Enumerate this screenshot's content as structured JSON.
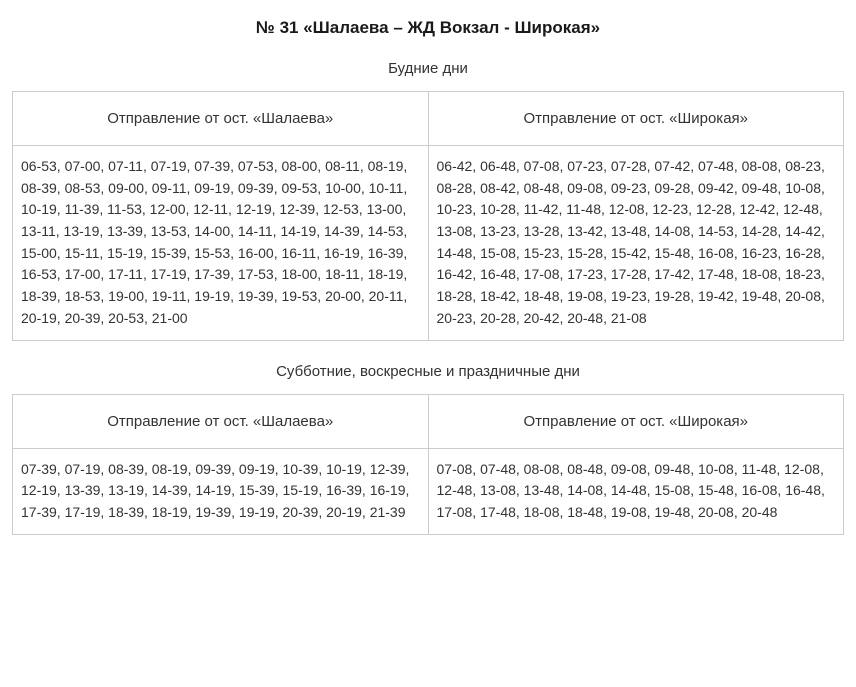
{
  "title": "№ 31 «Шалаева – ЖД Вокзал - Широкая»",
  "sections": {
    "weekday": {
      "label": "Будние дни",
      "columns": {
        "left": "Отправление от ост. «Шалаева»",
        "right": "Отправление от ост. «Широкая»"
      },
      "left_times": "06-53, 07-00, 07-11, 07-19, 07-39, 07-53, 08-00, 08-11, 08-19, 08-39, 08-53, 09-00, 09-11, 09-19, 09-39, 09-53, 10-00, 10-11, 10-19, 11-39, 11-53, 12-00, 12-11, 12-19, 12-39, 12-53, 13-00, 13-11, 13-19, 13-39, 13-53, 14-00, 14-11, 14-19, 14-39, 14-53, 15-00, 15-11, 15-19, 15-39, 15-53, 16-00, 16-11, 16-19, 16-39, 16-53, 17-00, 17-11, 17-19, 17-39, 17-53, 18-00, 18-11, 18-19, 18-39, 18-53, 19-00, 19-11, 19-19, 19-39, 19-53, 20-00, 20-11, 20-19, 20-39, 20-53, 21-00",
      "right_times": "06-42, 06-48, 07-08, 07-23, 07-28, 07-42, 07-48, 08-08, 08-23, 08-28, 08-42, 08-48, 09-08, 09-23, 09-28, 09-42, 09-48, 10-08, 10-23, 10-28, 11-42, 11-48, 12-08, 12-23, 12-28, 12-42, 12-48, 13-08, 13-23, 13-28, 13-42, 13-48, 14-08, 14-53, 14-28, 14-42, 14-48, 15-08, 15-23, 15-28, 15-42, 15-48, 16-08, 16-23, 16-28, 16-42, 16-48, 17-08, 17-23, 17-28, 17-42, 17-48, 18-08, 18-23, 18-28, 18-42, 18-48, 19-08, 19-23, 19-28, 19-42, 19-48, 20-08, 20-23, 20-28, 20-42, 20-48, 21-08"
    },
    "weekend": {
      "label": "Субботние, воскресные и праздничные дни",
      "columns": {
        "left": "Отправление от ост. «Шалаева»",
        "right": "Отправление от ост. «Широкая»"
      },
      "left_times": "07-39, 07-19, 08-39, 08-19, 09-39, 09-19, 10-39, 10-19, 12-39, 12-19, 13-39, 13-19, 14-39, 14-19, 15-39, 15-19, 16-39, 16-19, 17-39, 17-19, 18-39, 18-19, 19-39, 19-19, 20-39, 20-19, 21-39",
      "right_times": "07-08, 07-48, 08-08, 08-48, 09-08, 09-48, 10-08, 11-48, 12-08, 12-48, 13-08, 13-48, 14-08, 14-48, 15-08, 15-48, 16-08, 16-48, 17-08, 17-48, 18-08, 18-48, 19-08, 19-48, 20-08, 20-48"
    }
  },
  "style": {
    "border_color": "#cccccc",
    "text_color": "#333333",
    "title_color": "#1a1a1a",
    "background_color": "#ffffff",
    "title_fontsize": 17,
    "subtitle_fontsize": 15,
    "header_fontsize": 15,
    "cell_fontsize": 14
  }
}
